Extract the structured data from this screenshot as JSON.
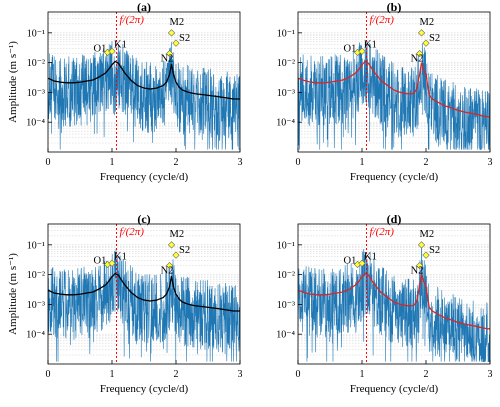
{
  "chart_data": [
    {
      "type": "line",
      "title": "(a)",
      "xlabel": "Frequency (cycle/d)",
      "ylabel": "Amplitude (m s⁻¹)",
      "xlim": [
        0,
        3
      ],
      "ylim": [
        1e-05,
        0.5
      ],
      "yscale": "log",
      "grid": true,
      "xticks": [
        "0",
        "1",
        "2",
        "3"
      ],
      "yticks": [
        "10⁻⁴",
        "10⁻³",
        "10⁻²",
        "10⁻¹"
      ],
      "inertial_line": {
        "label": "f/(2π)",
        "x": 1.07,
        "color": "#ff0000"
      },
      "mean_color": "#000000",
      "raw_color": "#1f77b4",
      "mean_curve": {
        "x": [
          0.0,
          0.1,
          0.2,
          0.3,
          0.4,
          0.5,
          0.6,
          0.7,
          0.8,
          0.9,
          0.95,
          1.0,
          1.05,
          1.1,
          1.15,
          1.2,
          1.3,
          1.4,
          1.5,
          1.6,
          1.7,
          1.8,
          1.85,
          1.9,
          1.93,
          1.96,
          2.0,
          2.05,
          2.1,
          2.2,
          2.3,
          2.4,
          2.5,
          2.6,
          2.7,
          2.8,
          2.9,
          3.0
        ],
        "y": [
          0.003,
          0.0024,
          0.0022,
          0.0021,
          0.0021,
          0.0022,
          0.0024,
          0.0026,
          0.0033,
          0.0045,
          0.006,
          0.0085,
          0.011,
          0.0095,
          0.0065,
          0.0045,
          0.0025,
          0.0017,
          0.0014,
          0.0013,
          0.0014,
          0.0017,
          0.0022,
          0.004,
          0.009,
          0.004,
          0.0022,
          0.0015,
          0.0012,
          0.001,
          0.0009,
          0.00085,
          0.0008,
          0.00075,
          0.0007,
          0.00065,
          0.0006,
          0.0006
        ]
      },
      "tidal_constituents": [
        {
          "name": "O1",
          "x": 0.93,
          "y": 0.022
        },
        {
          "name": "K1",
          "x": 1.0,
          "y": 0.024
        },
        {
          "name": "N2",
          "x": 1.9,
          "y": 0.02
        },
        {
          "name": "M2",
          "x": 1.93,
          "y": 0.1
        },
        {
          "name": "S2",
          "x": 2.0,
          "y": 0.045
        }
      ]
    },
    {
      "type": "line",
      "title": "(b)",
      "xlabel": "Frequency (cycle/d)",
      "ylabel": "",
      "xlim": [
        0,
        3
      ],
      "ylim": [
        1e-05,
        0.5
      ],
      "yscale": "log",
      "grid": true,
      "xticks": [
        "0",
        "1",
        "2",
        "3"
      ],
      "yticks": [
        "10⁻⁴",
        "10⁻³",
        "10⁻²",
        "10⁻¹"
      ],
      "inertial_line": {
        "label": "f/(2π)",
        "x": 1.07,
        "color": "#ff0000"
      },
      "mean_color": "#d62728",
      "raw_color": "#1f77b4",
      "mean_curve": {
        "x": [
          0.0,
          0.1,
          0.2,
          0.3,
          0.4,
          0.5,
          0.6,
          0.7,
          0.8,
          0.9,
          0.95,
          1.0,
          1.05,
          1.1,
          1.15,
          1.2,
          1.3,
          1.4,
          1.5,
          1.6,
          1.7,
          1.8,
          1.85,
          1.9,
          1.93,
          1.96,
          2.0,
          2.05,
          2.1,
          2.2,
          2.3,
          2.4,
          2.5,
          2.6,
          2.7,
          2.8,
          2.9,
          3.0
        ],
        "y": [
          0.003,
          0.0025,
          0.0022,
          0.0021,
          0.0021,
          0.0022,
          0.0024,
          0.0026,
          0.0032,
          0.0045,
          0.006,
          0.0085,
          0.011,
          0.0095,
          0.0065,
          0.0045,
          0.0025,
          0.0017,
          0.0012,
          0.001,
          0.0009,
          0.0009,
          0.0012,
          0.004,
          0.01,
          0.006,
          0.004,
          0.0008,
          0.0006,
          0.00045,
          0.00035,
          0.0003,
          0.00025,
          0.00022,
          0.0002,
          0.00018,
          0.00016,
          0.00015
        ]
      },
      "tidal_constituents": [
        {
          "name": "O1",
          "x": 0.93,
          "y": 0.022
        },
        {
          "name": "K1",
          "x": 1.0,
          "y": 0.024
        },
        {
          "name": "N2",
          "x": 1.9,
          "y": 0.02
        },
        {
          "name": "M2",
          "x": 1.93,
          "y": 0.1
        },
        {
          "name": "S2",
          "x": 2.0,
          "y": 0.045
        }
      ]
    },
    {
      "type": "line",
      "title": "(c)",
      "xlabel": "Frequency (cycle/d)",
      "ylabel": "Amplitude (m s⁻¹)",
      "xlim": [
        0,
        3
      ],
      "ylim": [
        1e-05,
        0.5
      ],
      "yscale": "log",
      "grid": true,
      "xticks": [
        "0",
        "1",
        "2",
        "3"
      ],
      "yticks": [
        "10⁻⁴",
        "10⁻³",
        "10⁻²",
        "10⁻¹"
      ],
      "inertial_line": {
        "label": "f/(2π)",
        "x": 1.07,
        "color": "#ff0000"
      },
      "mean_color": "#000000",
      "raw_color": "#1f77b4",
      "mean_curve": {
        "x": [
          0.0,
          0.1,
          0.2,
          0.3,
          0.4,
          0.5,
          0.6,
          0.7,
          0.8,
          0.9,
          0.95,
          1.0,
          1.05,
          1.1,
          1.15,
          1.2,
          1.3,
          1.4,
          1.5,
          1.6,
          1.7,
          1.8,
          1.85,
          1.9,
          1.93,
          1.96,
          2.0,
          2.05,
          2.1,
          2.2,
          2.3,
          2.4,
          2.5,
          2.6,
          2.7,
          2.8,
          2.9,
          3.0
        ],
        "y": [
          0.003,
          0.0024,
          0.0022,
          0.0021,
          0.0021,
          0.0022,
          0.0024,
          0.0026,
          0.0033,
          0.0045,
          0.006,
          0.0085,
          0.011,
          0.0095,
          0.0065,
          0.0045,
          0.0025,
          0.0017,
          0.0014,
          0.0013,
          0.0014,
          0.0017,
          0.0022,
          0.004,
          0.009,
          0.004,
          0.0022,
          0.0015,
          0.0012,
          0.001,
          0.0009,
          0.00085,
          0.0008,
          0.00075,
          0.0007,
          0.00065,
          0.0006,
          0.0006
        ]
      },
      "tidal_constituents": [
        {
          "name": "O1",
          "x": 0.93,
          "y": 0.022
        },
        {
          "name": "K1",
          "x": 1.0,
          "y": 0.024
        },
        {
          "name": "N2",
          "x": 1.9,
          "y": 0.02
        },
        {
          "name": "M2",
          "x": 1.93,
          "y": 0.1
        },
        {
          "name": "S2",
          "x": 2.0,
          "y": 0.045
        }
      ]
    },
    {
      "type": "line",
      "title": "(d)",
      "xlabel": "Frequency (cycle/d)",
      "ylabel": "",
      "xlim": [
        0,
        3
      ],
      "ylim": [
        1e-05,
        0.5
      ],
      "yscale": "log",
      "grid": true,
      "xticks": [
        "0",
        "1",
        "2",
        "3"
      ],
      "yticks": [
        "10⁻⁴",
        "10⁻³",
        "10⁻²",
        "10⁻¹"
      ],
      "inertial_line": {
        "label": "f/(2π)",
        "x": 1.07,
        "color": "#ff0000"
      },
      "mean_color": "#d62728",
      "raw_color": "#1f77b4",
      "mean_curve": {
        "x": [
          0.0,
          0.1,
          0.2,
          0.3,
          0.4,
          0.5,
          0.6,
          0.7,
          0.8,
          0.9,
          0.95,
          1.0,
          1.05,
          1.1,
          1.15,
          1.2,
          1.3,
          1.4,
          1.5,
          1.6,
          1.7,
          1.8,
          1.85,
          1.9,
          1.93,
          1.96,
          2.0,
          2.05,
          2.1,
          2.2,
          2.3,
          2.4,
          2.5,
          2.6,
          2.7,
          2.8,
          2.9,
          3.0
        ],
        "y": [
          0.003,
          0.0025,
          0.0022,
          0.0021,
          0.0021,
          0.0022,
          0.0024,
          0.0026,
          0.0032,
          0.0045,
          0.006,
          0.0085,
          0.011,
          0.0095,
          0.0065,
          0.0045,
          0.0025,
          0.0017,
          0.0012,
          0.001,
          0.0009,
          0.0009,
          0.0012,
          0.004,
          0.01,
          0.006,
          0.004,
          0.0008,
          0.0006,
          0.00045,
          0.00035,
          0.0003,
          0.00025,
          0.00022,
          0.0002,
          0.00018,
          0.00016,
          0.00015
        ]
      },
      "tidal_constituents": [
        {
          "name": "O1",
          "x": 0.93,
          "y": 0.022
        },
        {
          "name": "K1",
          "x": 1.0,
          "y": 0.024
        },
        {
          "name": "N2",
          "x": 1.9,
          "y": 0.02
        },
        {
          "name": "M2",
          "x": 1.93,
          "y": 0.1
        },
        {
          "name": "S2",
          "x": 2.0,
          "y": 0.045
        }
      ]
    }
  ]
}
